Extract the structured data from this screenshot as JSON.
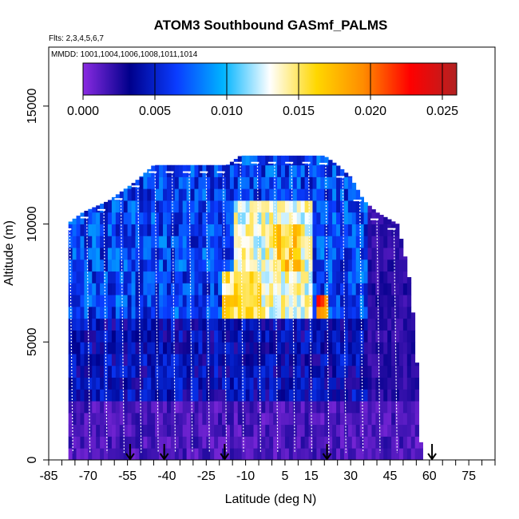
{
  "chart_data": {
    "type": "heatmap",
    "title": "ATOM3 Southbound GASmf_PALMS",
    "flights_label": "Flts: 2,3,4,5,6,7",
    "dates_label": "MMDD: 1001,1004,1006,1008,1011,1014",
    "xlabel": "Latitude (deg N)",
    "ylabel": "Altitude (m)",
    "xlim": [
      -85,
      85
    ],
    "ylim": [
      0,
      17500
    ],
    "x_tick_labels": [
      "-85",
      "-70",
      "-55",
      "-40",
      "-25",
      "-10",
      "5",
      "15",
      "30",
      "45",
      "60",
      "75"
    ],
    "y_tick_labels": [
      "0",
      "5000",
      "10000",
      "15000"
    ],
    "y_tick_values": [
      0,
      5000,
      10000,
      15000
    ],
    "colorbar": {
      "range": [
        0,
        0.026
      ],
      "tick_labels": [
        "0.000",
        "0.005",
        "0.010",
        "0.015",
        "0.020",
        "0.025"
      ],
      "tick_values": [
        0,
        0.005,
        0.01,
        0.015,
        0.02,
        0.025
      ],
      "colors": [
        "#8a2be2",
        "#00008b",
        "#0a3cff",
        "#00b4ff",
        "#ffffff",
        "#ffd700",
        "#ff8c00",
        "#ff0000",
        "#b22222"
      ]
    },
    "curtain_ceiling_km": [
      {
        "lat": -78,
        "alt": 10000
      },
      {
        "lat": -72,
        "alt": 10500
      },
      {
        "lat": -62,
        "alt": 11000
      },
      {
        "lat": -52,
        "alt": 11800
      },
      {
        "lat": -45,
        "alt": 12500
      },
      {
        "lat": -35,
        "alt": 12500
      },
      {
        "lat": -25,
        "alt": 12500
      },
      {
        "lat": -17,
        "alt": 12500
      },
      {
        "lat": -12,
        "alt": 12900
      },
      {
        "lat": 0,
        "alt": 12900
      },
      {
        "lat": 20,
        "alt": 12900
      },
      {
        "lat": 25,
        "alt": 12500
      },
      {
        "lat": 30,
        "alt": 12000
      },
      {
        "lat": 35,
        "alt": 11000
      },
      {
        "lat": 40,
        "alt": 10500
      },
      {
        "lat": 48,
        "alt": 10000
      },
      {
        "lat": 52,
        "alt": 8000
      },
      {
        "lat": 54,
        "alt": 6000
      },
      {
        "lat": 56,
        "alt": 3000
      },
      {
        "lat": 57,
        "alt": 0
      }
    ],
    "enhancement_regions": [
      {
        "lat_range": [
          -15,
          15
        ],
        "alt_range": [
          6000,
          10500
        ],
        "value": 0.014
      },
      {
        "lat_range": [
          -20,
          -5
        ],
        "alt_range": [
          6000,
          7500
        ],
        "value": 0.016
      },
      {
        "lat_range": [
          0,
          10
        ],
        "alt_range": [
          8000,
          9500
        ],
        "value": 0.017
      },
      {
        "lat_range": [
          17,
          21
        ],
        "alt_range": [
          6000,
          6500
        ],
        "value": 0.021
      }
    ],
    "flight_marker_lats": [
      -54,
      -41,
      -18,
      21,
      61
    ]
  }
}
